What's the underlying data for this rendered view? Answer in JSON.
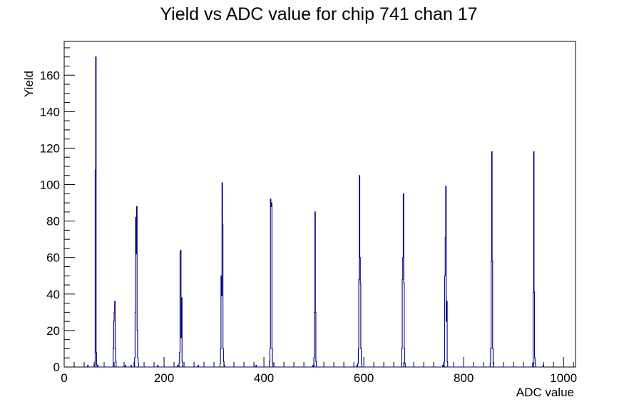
{
  "chart_data": {
    "type": "bar",
    "title": "Yield vs ADC value for chip 741 chan 17",
    "xlabel": "ADC value",
    "ylabel": "Yield",
    "xlim": [
      0,
      1024
    ],
    "ylim": [
      0,
      178.5
    ],
    "x_ticks": [
      0,
      200,
      400,
      600,
      800,
      1000
    ],
    "y_ticks": [
      0,
      20,
      40,
      60,
      80,
      100,
      120,
      140,
      160
    ],
    "grid": false,
    "legend": "none",
    "line_color": "#000080",
    "series": [
      {
        "bins": [
          [
            47,
            1
          ],
          [
            61,
            1
          ],
          [
            62,
            108
          ],
          [
            63,
            170
          ],
          [
            64,
            8
          ],
          [
            65,
            1
          ],
          [
            67,
            1
          ],
          [
            98,
            10
          ],
          [
            99,
            25
          ],
          [
            100,
            30
          ],
          [
            101,
            36
          ],
          [
            102,
            10
          ],
          [
            103,
            3
          ],
          [
            122,
            1
          ],
          [
            134,
            1
          ],
          [
            141,
            5
          ],
          [
            142,
            30
          ],
          [
            143,
            82
          ],
          [
            144,
            62
          ],
          [
            145,
            88
          ],
          [
            146,
            20
          ],
          [
            147,
            5
          ],
          [
            148,
            2
          ],
          [
            187,
            1
          ],
          [
            227,
            1
          ],
          [
            230,
            2
          ],
          [
            231,
            8
          ],
          [
            232,
            63
          ],
          [
            233,
            64
          ],
          [
            234,
            16
          ],
          [
            235,
            38
          ],
          [
            236,
            3
          ],
          [
            268,
            1
          ],
          [
            312,
            2
          ],
          [
            313,
            10
          ],
          [
            314,
            50
          ],
          [
            315,
            39
          ],
          [
            316,
            101
          ],
          [
            317,
            78
          ],
          [
            318,
            10
          ],
          [
            319,
            3
          ],
          [
            320,
            1
          ],
          [
            384,
            1
          ],
          [
            411,
            3
          ],
          [
            412,
            10
          ],
          [
            413,
            92
          ],
          [
            414,
            88
          ],
          [
            415,
            90
          ],
          [
            416,
            10
          ],
          [
            417,
            2
          ],
          [
            498,
            1
          ],
          [
            500,
            5
          ],
          [
            501,
            30
          ],
          [
            502,
            85
          ],
          [
            503,
            30
          ],
          [
            504,
            3
          ],
          [
            586,
            1
          ],
          [
            588,
            2
          ],
          [
            589,
            10
          ],
          [
            590,
            48
          ],
          [
            591,
            105
          ],
          [
            592,
            60
          ],
          [
            593,
            46
          ],
          [
            594,
            10
          ],
          [
            595,
            2
          ],
          [
            675,
            2
          ],
          [
            676,
            10
          ],
          [
            677,
            48
          ],
          [
            678,
            60
          ],
          [
            679,
            95
          ],
          [
            680,
            46
          ],
          [
            681,
            10
          ],
          [
            682,
            2
          ],
          [
            758,
            1
          ],
          [
            761,
            3
          ],
          [
            762,
            50
          ],
          [
            763,
            71
          ],
          [
            764,
            99
          ],
          [
            765,
            25
          ],
          [
            766,
            36
          ],
          [
            767,
            3
          ],
          [
            853,
            2
          ],
          [
            854,
            10
          ],
          [
            855,
            58
          ],
          [
            856,
            118
          ],
          [
            857,
            58
          ],
          [
            858,
            10
          ],
          [
            859,
            2
          ],
          [
            938,
            2
          ],
          [
            939,
            41
          ],
          [
            940,
            118
          ],
          [
            941,
            41
          ],
          [
            942,
            5
          ],
          [
            943,
            2
          ],
          [
            959,
            1
          ]
        ]
      }
    ]
  }
}
